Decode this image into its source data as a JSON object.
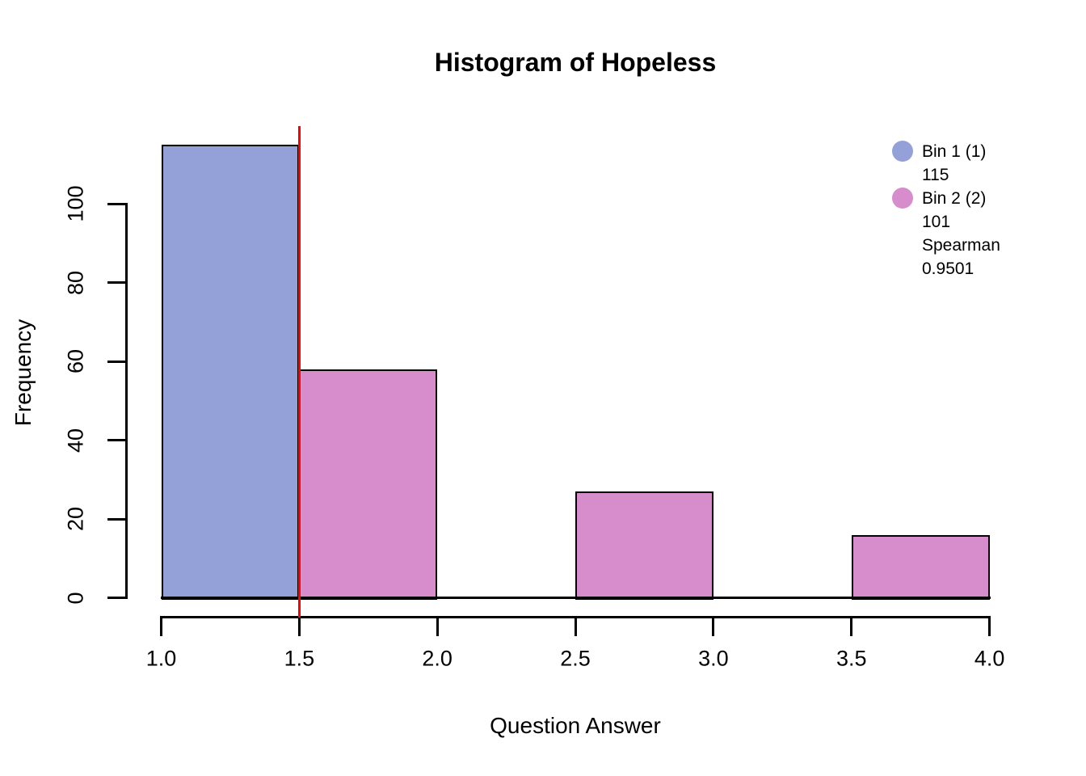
{
  "chart_data": {
    "type": "bar",
    "subtype": "histogram",
    "title": "Histogram of Hopeless",
    "xlabel": "Question Answer",
    "ylabel": "Frequency",
    "xlim": [
      1.0,
      4.0
    ],
    "ylim": [
      0,
      115
    ],
    "grid": false,
    "background": "#ffffff",
    "bar_border_color": "#000000",
    "x_ticks": [
      {
        "v": 1.0,
        "label": "1.0"
      },
      {
        "v": 1.5,
        "label": "1.5"
      },
      {
        "v": 2.0,
        "label": "2.0"
      },
      {
        "v": 2.5,
        "label": "2.5"
      },
      {
        "v": 3.0,
        "label": "3.0"
      },
      {
        "v": 3.5,
        "label": "3.5"
      },
      {
        "v": 4.0,
        "label": "4.0"
      }
    ],
    "y_ticks": [
      {
        "v": 0,
        "label": "0"
      },
      {
        "v": 20,
        "label": "20"
      },
      {
        "v": 40,
        "label": "40"
      },
      {
        "v": 60,
        "label": "60"
      },
      {
        "v": 80,
        "label": "80"
      },
      {
        "v": 100,
        "label": "100"
      }
    ],
    "bins": [
      {
        "x0": 1.0,
        "x1": 1.5,
        "count": 115,
        "fill": "#93A1D8",
        "group": "Bin 1"
      },
      {
        "x0": 1.5,
        "x1": 2.0,
        "count": 58,
        "fill": "#D78CCB",
        "group": "Bin 2"
      },
      {
        "x0": 2.0,
        "x1": 2.5,
        "count": 0,
        "fill": "#D78CCB",
        "group": "Bin 2"
      },
      {
        "x0": 2.5,
        "x1": 3.0,
        "count": 27,
        "fill": "#D78CCB",
        "group": "Bin 2"
      },
      {
        "x0": 3.0,
        "x1": 3.5,
        "count": 0,
        "fill": "#D78CCB",
        "group": "Bin 2"
      },
      {
        "x0": 3.5,
        "x1": 4.0,
        "count": 16,
        "fill": "#D78CCB",
        "group": "Bin 2"
      }
    ],
    "reference_line": {
      "orientation": "vertical",
      "x": 1.5,
      "color": "#ff0000"
    },
    "legend": {
      "position": "top-right",
      "entries": [
        {
          "swatch_color": "#93A1D8",
          "lines": [
            "Bin 1 (1)",
            "115"
          ]
        },
        {
          "swatch_color": "#D78CCB",
          "lines": [
            "Bin 2 (2)",
            "101",
            "Spearman",
            "0.9501"
          ]
        }
      ]
    }
  }
}
